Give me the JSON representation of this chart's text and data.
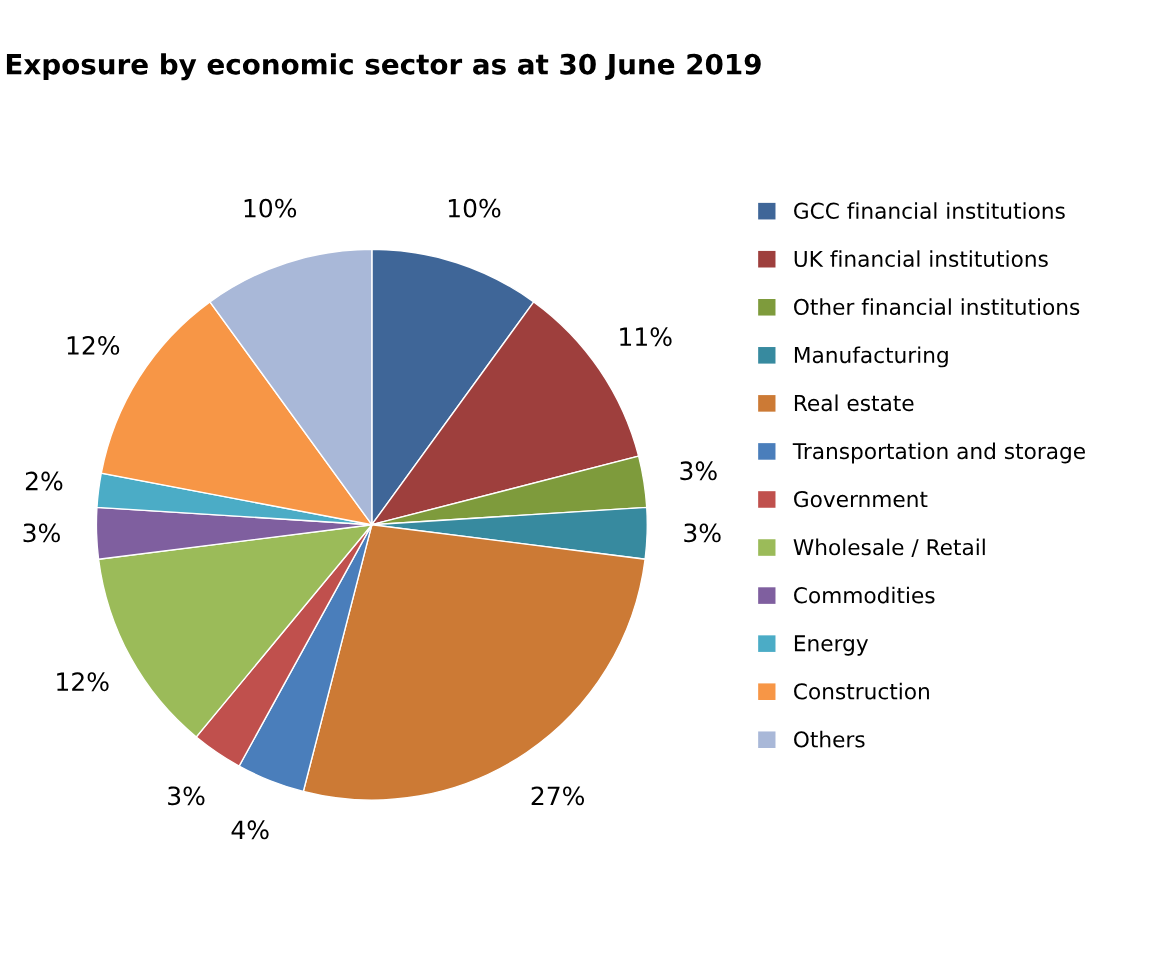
{
  "chart_data": {
    "type": "pie",
    "title": "Exposure by economic sector as at 30 June 2019",
    "categories": [
      "GCC financial institutions",
      "UK financial institutions",
      "Other financial institutions",
      "Manufacturing",
      "Real estate",
      "Transportation and storage",
      "Government",
      "Wholesale / Retail",
      "Commodities",
      "Energy",
      "Construction",
      "Others"
    ],
    "values": [
      10,
      11,
      3,
      3,
      27,
      4,
      3,
      12,
      3,
      2,
      12,
      10
    ],
    "value_labels": [
      "10%",
      "11%",
      "3%",
      "3%",
      "27%",
      "4%",
      "3%",
      "12%",
      "3%",
      "2%",
      "12%",
      "10%"
    ],
    "colors": [
      "#3f6698",
      "#9e3f3d",
      "#7e9b3c",
      "#378a9f",
      "#cc7a35",
      "#4a7ebb",
      "#c0504d",
      "#9bbb59",
      "#7f5f9f",
      "#4bacc6",
      "#f79646",
      "#a9b8d8"
    ],
    "legend": "right"
  }
}
